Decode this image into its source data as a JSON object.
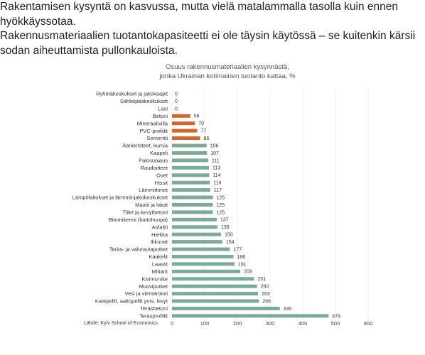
{
  "intro": {
    "line1": "Rakentamisen kysyntä on kasvussa, mutta vielä matalammalla tasolla kuin ennen hyökkäyssotaa.",
    "line2": "Rakennusmateriaalien tuotantokapasiteetti ei ole täysin käytössä – se kuitenkin kärsii sodan aiheuttamista pullonkauloista."
  },
  "chart_data": {
    "type": "bar",
    "orientation": "horizontal",
    "title_line1": "Osuus rakennusmateriaalien kysynnästä,",
    "title_line2": "jonka Ukrainan kotimainen tuotanto kattaa, %",
    "source": "Lähde: Kyiv School of Economics",
    "xlim": [
      0,
      600
    ],
    "xticks": [
      0,
      100,
      200,
      300,
      400,
      500,
      600
    ],
    "grid": true,
    "colors": {
      "normal": "#7dab97",
      "highlight": "#d4652a"
    },
    "categories": [
      "Ryhmäkeskukset ja jakokaapit",
      "Sähköpääkeskukset",
      "Lasi",
      "Betoni",
      "Mineraalivilla",
      "PVC-profiilit",
      "Sementti",
      "Äänieristeet, kumia",
      "Kaapeli",
      "Palosuojaus",
      "Raudoitteet",
      "Ovet",
      "Hissit",
      "Lämmittimet",
      "Lämpölaitokset ja lämmönjakokeskukset",
      "Maalit ja lakat",
      "Tiilet ja kevytbetoni",
      "Bitumikermi (kattohuopa)",
      "Asfaltti",
      "Hiekka",
      "Ikkunat",
      "Teräs- ja valurautaputket",
      "Kaakelit",
      "Laastit",
      "Mittarit",
      "Kivimurske",
      "Muoviputket",
      "Vesi ja viemäröinti",
      "Katepellit, aaltopellit yms. levyt",
      "Teräsbetoni",
      "Teräsprofiilit"
    ],
    "values": [
      0,
      0,
      0,
      56,
      70,
      77,
      86,
      106,
      107,
      111,
      113,
      114,
      116,
      117,
      125,
      125,
      125,
      137,
      139,
      150,
      154,
      177,
      188,
      191,
      209,
      251,
      260,
      263,
      266,
      330,
      479
    ],
    "highlight": [
      false,
      false,
      false,
      true,
      true,
      true,
      true,
      false,
      false,
      false,
      false,
      false,
      false,
      false,
      false,
      false,
      false,
      false,
      false,
      false,
      false,
      false,
      false,
      false,
      false,
      false,
      false,
      false,
      false,
      false,
      false
    ]
  }
}
